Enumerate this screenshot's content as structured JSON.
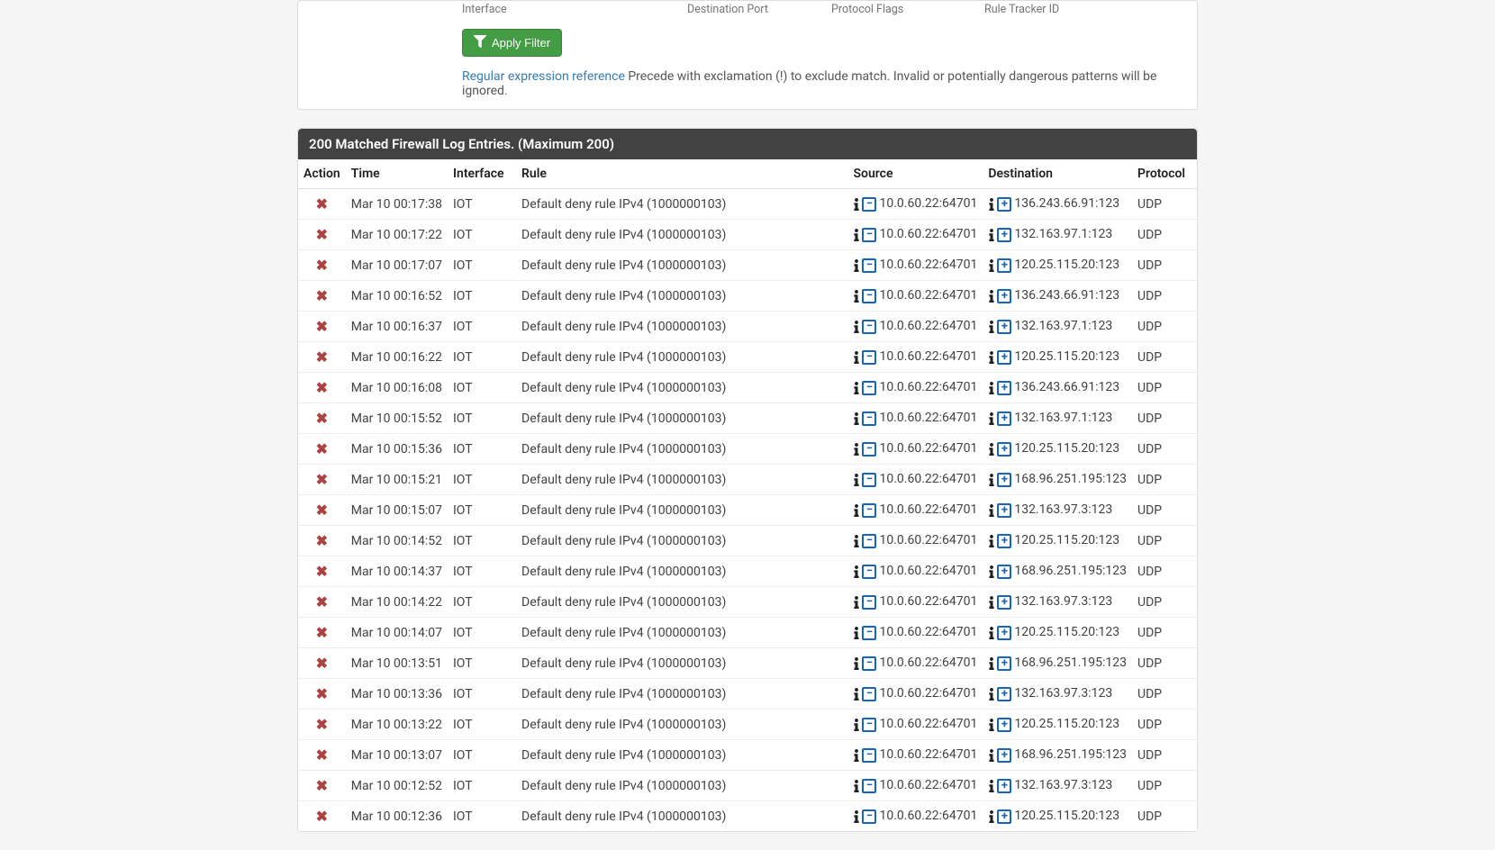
{
  "colors": {
    "page_bg": "#f5f5f5",
    "panel_bg": "#ffffff",
    "header_bg": "#424242",
    "header_text": "#ffffff",
    "border": "#dddddd",
    "row_border": "#eeeeee",
    "text": "#424242",
    "text_strong": "#212121",
    "muted": "#757575",
    "link": "#337ab7",
    "btn_bg": "#449d44",
    "btn_border": "#398439",
    "block_icon": "#a94442",
    "box_icon": "#1565c0"
  },
  "filter": {
    "labels": {
      "interface": "Interface",
      "dest_port": "Destination Port",
      "protocol_flags": "Protocol Flags",
      "rule_tracker": "Rule Tracker ID"
    },
    "apply_label": "Apply Filter",
    "help_link_text": "Regular expression reference",
    "help_text": " Precede with exclamation (!) to exclude match. Invalid or potentially dangerous patterns will be ignored."
  },
  "log": {
    "panel_title": "200 Matched Firewall Log Entries. (Maximum 200)",
    "columns": {
      "action": "Action",
      "time": "Time",
      "interface": "Interface",
      "rule": "Rule",
      "source": "Source",
      "destination": "Destination",
      "protocol": "Protocol"
    },
    "rows": [
      {
        "time": "Mar 10 00:17:38",
        "iface": "IOT",
        "rule": "Default deny rule IPv4 (1000000103)",
        "src": "10.0.60.22:64701",
        "dst": "136.243.66.91:123",
        "proto": "UDP"
      },
      {
        "time": "Mar 10 00:17:22",
        "iface": "IOT",
        "rule": "Default deny rule IPv4 (1000000103)",
        "src": "10.0.60.22:64701",
        "dst": "132.163.97.1:123",
        "proto": "UDP"
      },
      {
        "time": "Mar 10 00:17:07",
        "iface": "IOT",
        "rule": "Default deny rule IPv4 (1000000103)",
        "src": "10.0.60.22:64701",
        "dst": "120.25.115.20:123",
        "proto": "UDP"
      },
      {
        "time": "Mar 10 00:16:52",
        "iface": "IOT",
        "rule": "Default deny rule IPv4 (1000000103)",
        "src": "10.0.60.22:64701",
        "dst": "136.243.66.91:123",
        "proto": "UDP"
      },
      {
        "time": "Mar 10 00:16:37",
        "iface": "IOT",
        "rule": "Default deny rule IPv4 (1000000103)",
        "src": "10.0.60.22:64701",
        "dst": "132.163.97.1:123",
        "proto": "UDP"
      },
      {
        "time": "Mar 10 00:16:22",
        "iface": "IOT",
        "rule": "Default deny rule IPv4 (1000000103)",
        "src": "10.0.60.22:64701",
        "dst": "120.25.115.20:123",
        "proto": "UDP"
      },
      {
        "time": "Mar 10 00:16:08",
        "iface": "IOT",
        "rule": "Default deny rule IPv4 (1000000103)",
        "src": "10.0.60.22:64701",
        "dst": "136.243.66.91:123",
        "proto": "UDP"
      },
      {
        "time": "Mar 10 00:15:52",
        "iface": "IOT",
        "rule": "Default deny rule IPv4 (1000000103)",
        "src": "10.0.60.22:64701",
        "dst": "132.163.97.1:123",
        "proto": "UDP"
      },
      {
        "time": "Mar 10 00:15:36",
        "iface": "IOT",
        "rule": "Default deny rule IPv4 (1000000103)",
        "src": "10.0.60.22:64701",
        "dst": "120.25.115.20:123",
        "proto": "UDP"
      },
      {
        "time": "Mar 10 00:15:21",
        "iface": "IOT",
        "rule": "Default deny rule IPv4 (1000000103)",
        "src": "10.0.60.22:64701",
        "dst": "168.96.251.195:123",
        "proto": "UDP"
      },
      {
        "time": "Mar 10 00:15:07",
        "iface": "IOT",
        "rule": "Default deny rule IPv4 (1000000103)",
        "src": "10.0.60.22:64701",
        "dst": "132.163.97.3:123",
        "proto": "UDP"
      },
      {
        "time": "Mar 10 00:14:52",
        "iface": "IOT",
        "rule": "Default deny rule IPv4 (1000000103)",
        "src": "10.0.60.22:64701",
        "dst": "120.25.115.20:123",
        "proto": "UDP"
      },
      {
        "time": "Mar 10 00:14:37",
        "iface": "IOT",
        "rule": "Default deny rule IPv4 (1000000103)",
        "src": "10.0.60.22:64701",
        "dst": "168.96.251.195:123",
        "proto": "UDP"
      },
      {
        "time": "Mar 10 00:14:22",
        "iface": "IOT",
        "rule": "Default deny rule IPv4 (1000000103)",
        "src": "10.0.60.22:64701",
        "dst": "132.163.97.3:123",
        "proto": "UDP"
      },
      {
        "time": "Mar 10 00:14:07",
        "iface": "IOT",
        "rule": "Default deny rule IPv4 (1000000103)",
        "src": "10.0.60.22:64701",
        "dst": "120.25.115.20:123",
        "proto": "UDP"
      },
      {
        "time": "Mar 10 00:13:51",
        "iface": "IOT",
        "rule": "Default deny rule IPv4 (1000000103)",
        "src": "10.0.60.22:64701",
        "dst": "168.96.251.195:123",
        "proto": "UDP"
      },
      {
        "time": "Mar 10 00:13:36",
        "iface": "IOT",
        "rule": "Default deny rule IPv4 (1000000103)",
        "src": "10.0.60.22:64701",
        "dst": "132.163.97.3:123",
        "proto": "UDP"
      },
      {
        "time": "Mar 10 00:13:22",
        "iface": "IOT",
        "rule": "Default deny rule IPv4 (1000000103)",
        "src": "10.0.60.22:64701",
        "dst": "120.25.115.20:123",
        "proto": "UDP"
      },
      {
        "time": "Mar 10 00:13:07",
        "iface": "IOT",
        "rule": "Default deny rule IPv4 (1000000103)",
        "src": "10.0.60.22:64701",
        "dst": "168.96.251.195:123",
        "proto": "UDP"
      },
      {
        "time": "Mar 10 00:12:52",
        "iface": "IOT",
        "rule": "Default deny rule IPv4 (1000000103)",
        "src": "10.0.60.22:64701",
        "dst": "132.163.97.3:123",
        "proto": "UDP"
      },
      {
        "time": "Mar 10 00:12:36",
        "iface": "IOT",
        "rule": "Default deny rule IPv4 (1000000103)",
        "src": "10.0.60.22:64701",
        "dst": "120.25.115.20:123",
        "proto": "UDP"
      }
    ]
  }
}
